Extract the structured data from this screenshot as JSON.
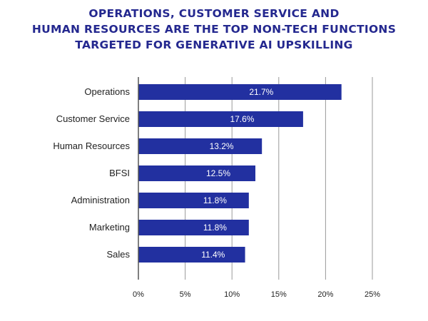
{
  "colors": {
    "title": "#24288f",
    "bar": "#2230a0",
    "grid": "#999999",
    "axis": "#555555"
  },
  "chart_data": {
    "type": "bar",
    "orientation": "horizontal",
    "title_lines": [
      "OPERATIONS, CUSTOMER SERVICE AND",
      "HUMAN RESOURCES ARE THE TOP NON-TECH FUNCTIONS",
      "TARGETED FOR GENERATIVE AI UPSKILLING"
    ],
    "categories": [
      "Operations",
      "Customer Service",
      "Human Resources",
      "BFSI",
      "Administration",
      "Marketing",
      "Sales"
    ],
    "values": [
      21.7,
      17.6,
      13.2,
      12.5,
      11.8,
      11.8,
      11.4
    ],
    "value_labels": [
      "21.7%",
      "17.6%",
      "13.2%",
      "12.5%",
      "11.8%",
      "11.8%",
      "11.4%"
    ],
    "xlim": [
      0,
      25
    ],
    "ticks": [
      0,
      5,
      10,
      15,
      20,
      25
    ],
    "tick_labels": [
      "0%",
      "5%",
      "10%",
      "15%",
      "20%",
      "25%"
    ],
    "grid": "vertical",
    "xlabel": "",
    "ylabel": ""
  }
}
